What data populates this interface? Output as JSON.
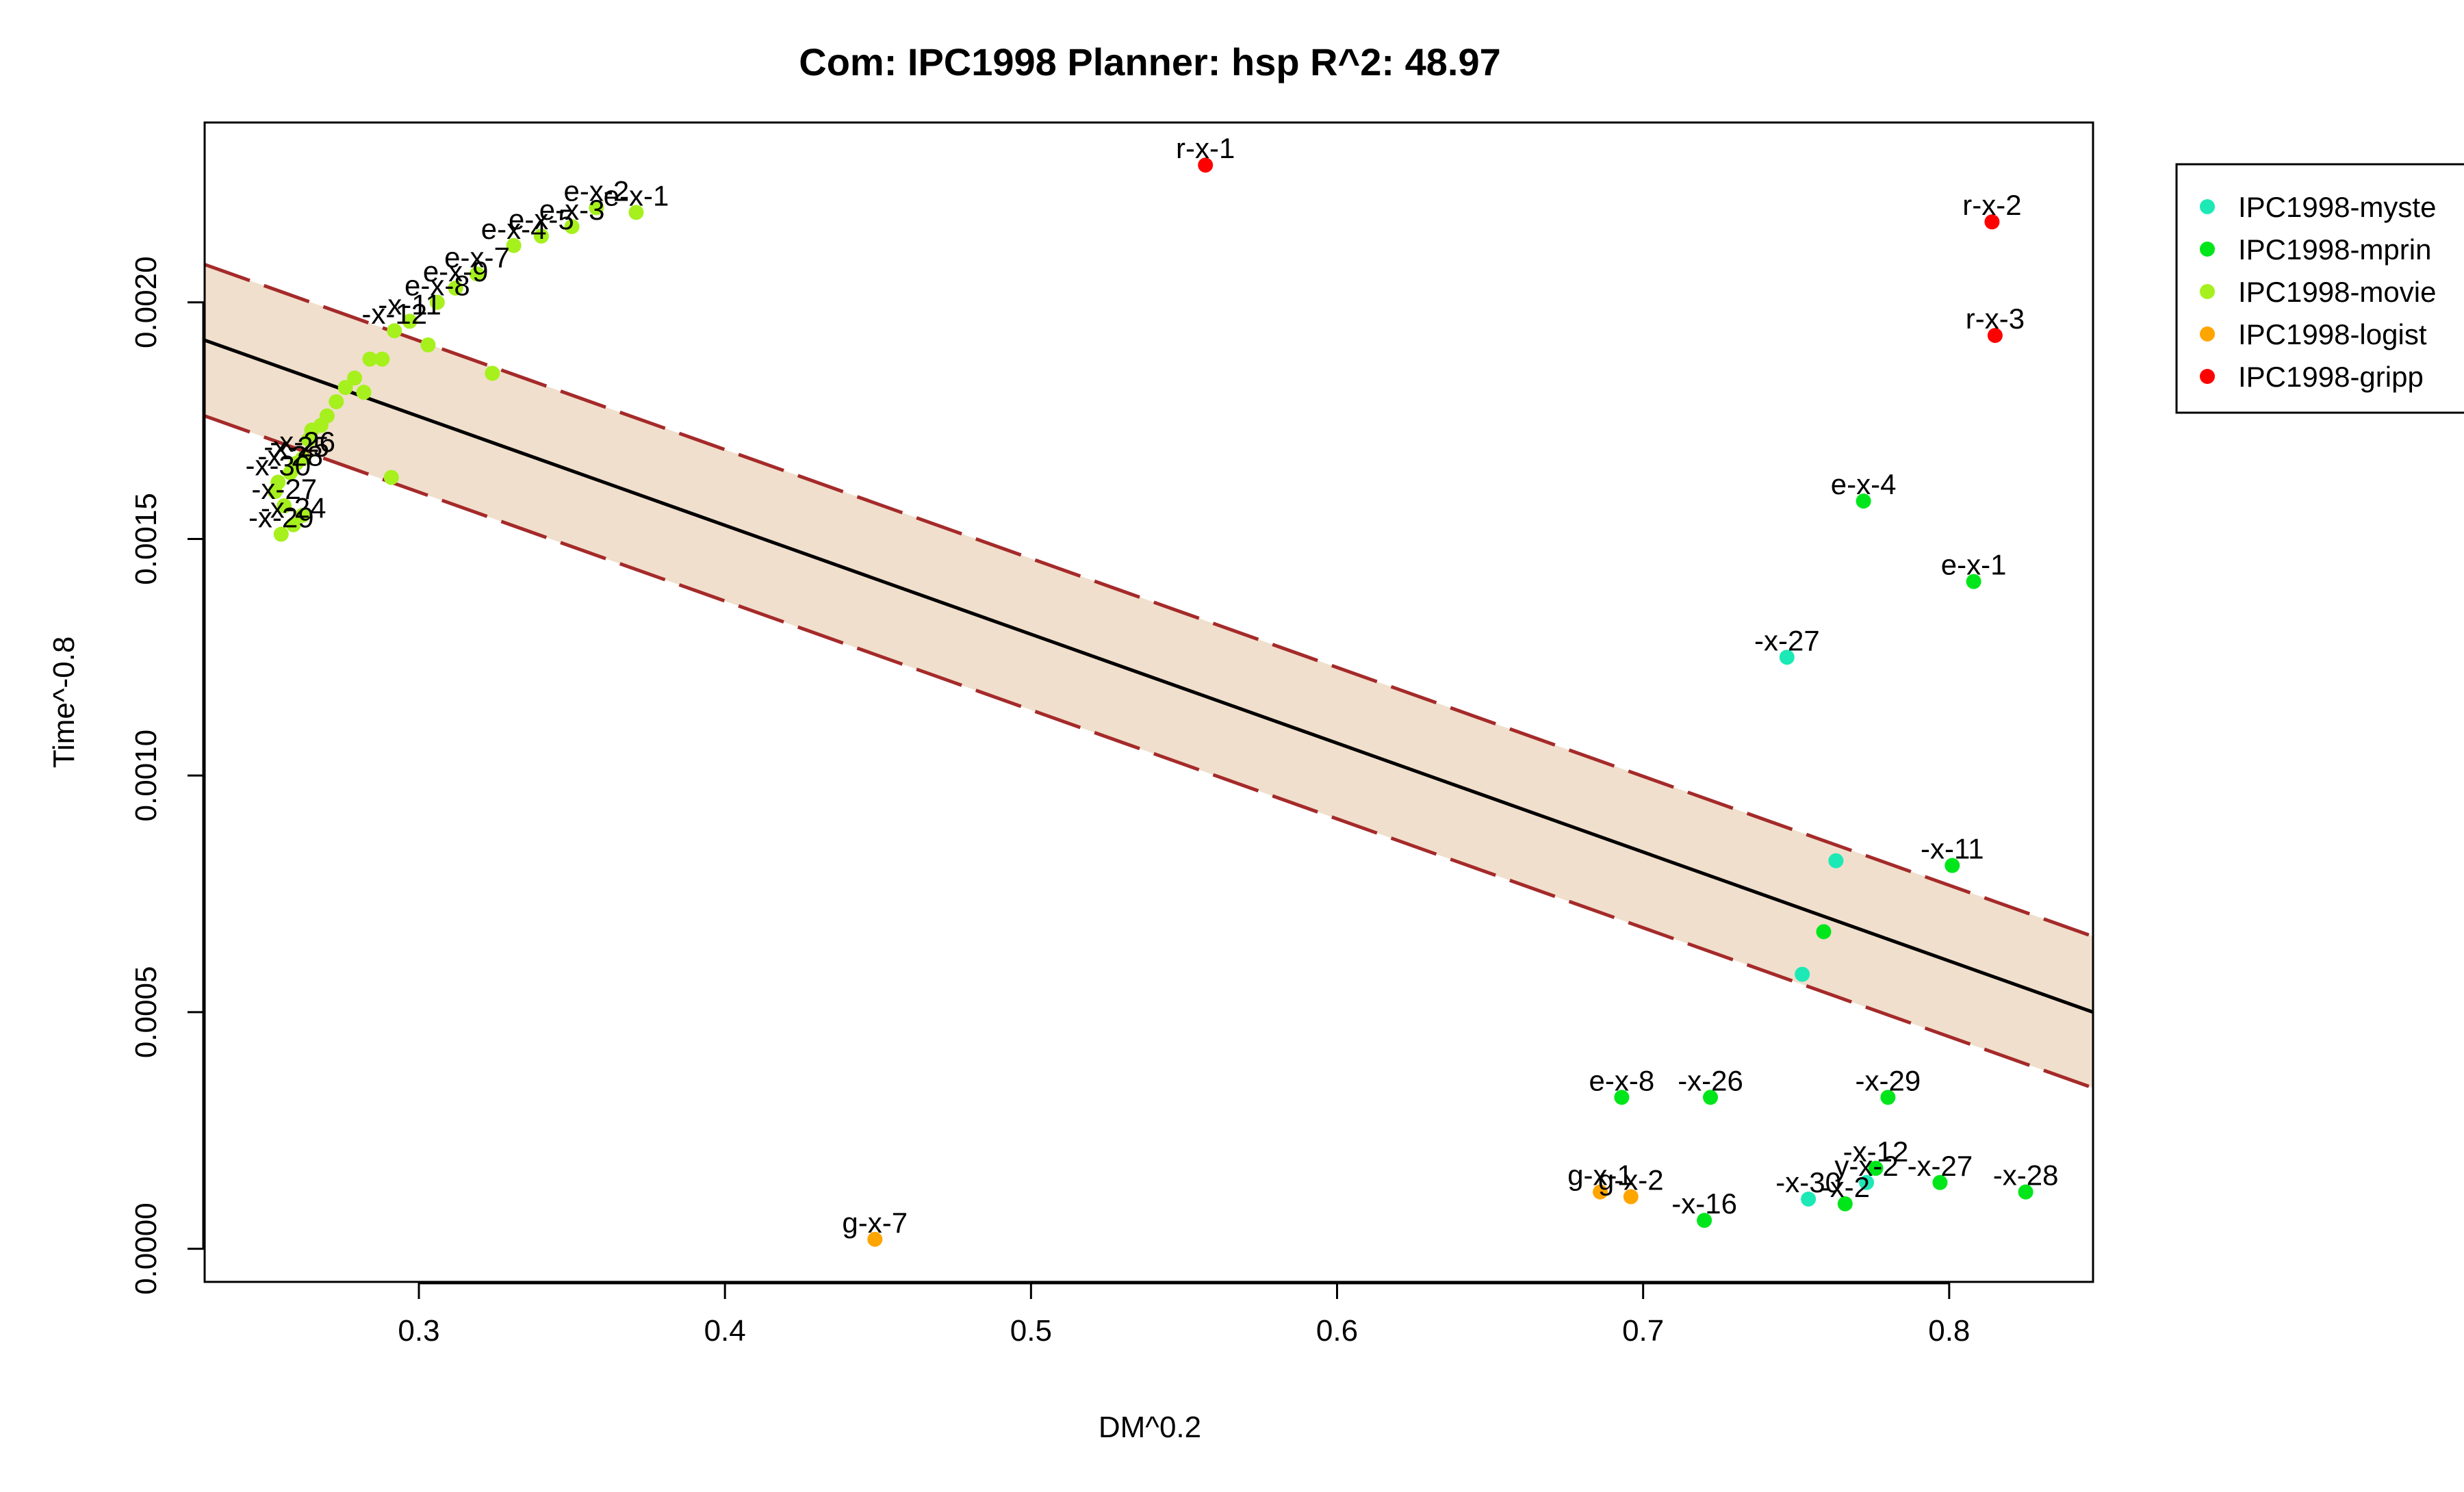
{
  "chart_data": {
    "type": "scatter",
    "title": "Com: IPC1998 Planner: hsp R^2: 48.97",
    "xlabel": "DM^0.2",
    "ylabel": "Time^-0.8",
    "xlim": [
      0.23,
      0.847
    ],
    "ylim": [
      -7e-05,
      0.00238
    ],
    "x_ticks": [
      0.3,
      0.4,
      0.5,
      0.6,
      0.7,
      0.8
    ],
    "y_ticks": [
      0.0,
      0.0005,
      0.001,
      0.0015,
      0.002
    ],
    "x_tick_labels": [
      "0.3",
      "0.4",
      "0.5",
      "0.6",
      "0.7",
      "0.8"
    ],
    "y_tick_labels": [
      "0.0000",
      "0.0005",
      "0.0010",
      "0.0015",
      "0.0020"
    ],
    "grid": false,
    "legend_position": "outside-top-right",
    "regression": {
      "x": [
        0.23,
        0.847
      ],
      "y": [
        0.00192,
        0.0005
      ]
    },
    "prediction_band": {
      "upper": [
        0.00208,
        0.00066
      ],
      "lower": [
        0.00176,
        0.00034
      ]
    },
    "colors": {
      "line": "#000000",
      "band_fill": "#f0dfcc",
      "band_edge": "#a52a2a"
    },
    "series": [
      {
        "name": "IPC1998-myste",
        "color": "#1de9b6",
        "points": [
          {
            "x": 0.747,
            "y": 0.00125,
            "label": "-x-27"
          },
          {
            "x": 0.763,
            "y": 0.00082,
            "label": ""
          },
          {
            "x": 0.752,
            "y": 0.00058,
            "label": ""
          },
          {
            "x": 0.754,
            "y": 0.000105,
            "label": "-x-30"
          },
          {
            "x": 0.773,
            "y": 0.00014,
            "label": "y-x-2"
          }
        ]
      },
      {
        "name": "IPC1998-mprin",
        "color": "#00e61a",
        "points": [
          {
            "x": 0.772,
            "y": 0.00158,
            "label": "e-x-4"
          },
          {
            "x": 0.808,
            "y": 0.00141,
            "label": "e-x-1"
          },
          {
            "x": 0.801,
            "y": 0.00081,
            "label": "-x-11"
          },
          {
            "x": 0.759,
            "y": 0.00067,
            "label": ""
          },
          {
            "x": 0.693,
            "y": 0.00032,
            "label": "e-x-8"
          },
          {
            "x": 0.722,
            "y": 0.00032,
            "label": "-x-26"
          },
          {
            "x": 0.78,
            "y": 0.00032,
            "label": "-x-29"
          },
          {
            "x": 0.776,
            "y": 0.00017,
            "label": "-x-12"
          },
          {
            "x": 0.797,
            "y": 0.00014,
            "label": "-x-27"
          },
          {
            "x": 0.825,
            "y": 0.00012,
            "label": "-x-28"
          },
          {
            "x": 0.72,
            "y": 6e-05,
            "label": "-x-16"
          },
          {
            "x": 0.766,
            "y": 9.5e-05,
            "label": "-x-2"
          }
        ]
      },
      {
        "name": "IPC1998-movie",
        "color": "#a6f01d",
        "points": [
          {
            "x": 0.371,
            "y": 0.00219,
            "label": "e-x-1"
          },
          {
            "x": 0.358,
            "y": 0.0022,
            "label": "e-x-2"
          },
          {
            "x": 0.35,
            "y": 0.00216,
            "label": "e-x-3"
          },
          {
            "x": 0.34,
            "y": 0.00214,
            "label": "e-x-5"
          },
          {
            "x": 0.331,
            "y": 0.00212,
            "label": "e-x-4"
          },
          {
            "x": 0.319,
            "y": 0.00206,
            "label": "e-x-7"
          },
          {
            "x": 0.312,
            "y": 0.00203,
            "label": "e-x-9"
          },
          {
            "x": 0.306,
            "y": 0.002,
            "label": "e-x-8"
          },
          {
            "x": 0.297,
            "y": 0.00196,
            "label": "-x-11"
          },
          {
            "x": 0.292,
            "y": 0.00194,
            "label": "-x-12"
          },
          {
            "x": 0.303,
            "y": 0.00191,
            "label": ""
          },
          {
            "x": 0.324,
            "y": 0.00185,
            "label": ""
          },
          {
            "x": 0.288,
            "y": 0.00188,
            "label": ""
          },
          {
            "x": 0.284,
            "y": 0.00188,
            "label": ""
          },
          {
            "x": 0.279,
            "y": 0.00184,
            "label": ""
          },
          {
            "x": 0.276,
            "y": 0.00182,
            "label": ""
          },
          {
            "x": 0.282,
            "y": 0.00181,
            "label": ""
          },
          {
            "x": 0.273,
            "y": 0.00179,
            "label": ""
          },
          {
            "x": 0.27,
            "y": 0.00176,
            "label": ""
          },
          {
            "x": 0.268,
            "y": 0.00174,
            "label": ""
          },
          {
            "x": 0.265,
            "y": 0.00173,
            "label": ""
          },
          {
            "x": 0.264,
            "y": 0.00171,
            "label": ""
          },
          {
            "x": 0.291,
            "y": 0.00163,
            "label": ""
          },
          {
            "x": 0.262,
            "y": 0.00167,
            "label": "-x-26"
          },
          {
            "x": 0.26,
            "y": 0.00166,
            "label": "-x-25"
          },
          {
            "x": 0.258,
            "y": 0.00164,
            "label": "-x-28"
          },
          {
            "x": 0.254,
            "y": 0.00162,
            "label": "-x-30"
          },
          {
            "x": 0.253,
            "y": 0.0016,
            "label": ""
          },
          {
            "x": 0.256,
            "y": 0.00157,
            "label": "-x-27"
          },
          {
            "x": 0.262,
            "y": 0.00155,
            "label": ""
          },
          {
            "x": 0.259,
            "y": 0.00153,
            "label": "-x-24"
          },
          {
            "x": 0.255,
            "y": 0.00151,
            "label": "-x-29"
          }
        ]
      },
      {
        "name": "IPC1998-logist",
        "color": "#ffa500",
        "points": [
          {
            "x": 0.449,
            "y": 2e-05,
            "label": "g-x-7"
          },
          {
            "x": 0.686,
            "y": 0.00012,
            "label": "g-x-1"
          },
          {
            "x": 0.696,
            "y": 0.00011,
            "label": "g-x-2"
          }
        ]
      },
      {
        "name": "IPC1998-gripp",
        "color": "#ff0000",
        "points": [
          {
            "x": 0.557,
            "y": 0.00229,
            "label": "r-x-1"
          },
          {
            "x": 0.814,
            "y": 0.00217,
            "label": "r-x-2"
          },
          {
            "x": 0.815,
            "y": 0.00193,
            "label": "r-x-3"
          }
        ]
      }
    ]
  }
}
